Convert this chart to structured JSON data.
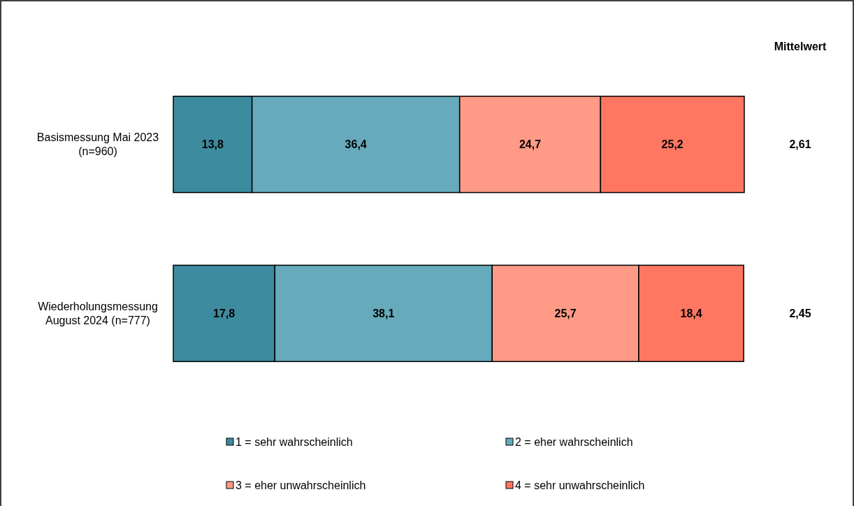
{
  "chart_data": {
    "type": "bar",
    "orientation": "horizontal",
    "stacked": true,
    "legend": "bottom",
    "categories": [
      "Basismessung Mai 2023 (n=960)",
      "Wiederholungsmessung August 2024 (n=777)"
    ],
    "series": [
      {
        "name": "1 = sehr wahrscheinlich",
        "color": "#3d8b9e",
        "values": [
          13.8,
          17.8
        ],
        "value_labels": [
          "13,8",
          "17,8"
        ]
      },
      {
        "name": "2 = eher wahrscheinlich",
        "color": "#66aabb",
        "values": [
          36.4,
          38.1
        ],
        "value_labels": [
          "36,4",
          "38,1"
        ]
      },
      {
        "name": "3 = eher unwahrscheinlich",
        "color": "#ff9a86",
        "values": [
          24.7,
          25.7
        ],
        "value_labels": [
          "24,7",
          "25,7"
        ]
      },
      {
        "name": "4 = sehr unwahrscheinlich",
        "color": "#ff7761",
        "values": [
          25.2,
          18.4
        ],
        "value_labels": [
          "25,2",
          "18,4"
        ]
      }
    ],
    "annotations": [
      "Mittelwert",
      "2,61",
      "2,45"
    ]
  }
}
